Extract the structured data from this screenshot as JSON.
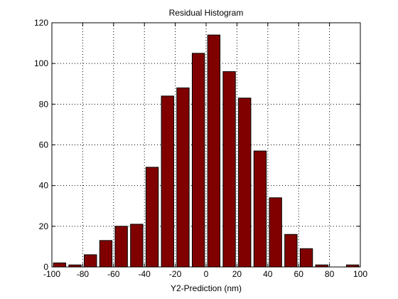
{
  "chart_data": {
    "type": "bar",
    "title": "Residual Histogram",
    "xlabel": "Y2-Prediction (nm)",
    "ylabel": "",
    "xlim": [
      -100,
      100
    ],
    "ylim": [
      0,
      120
    ],
    "xticks": [
      -100,
      -80,
      -60,
      -40,
      -20,
      0,
      20,
      40,
      60,
      80,
      100
    ],
    "yticks": [
      0,
      20,
      40,
      60,
      80,
      100,
      120
    ],
    "xtick_labels": [
      "-100",
      "-80",
      "-60",
      "-40",
      "-20",
      "0",
      "20",
      "40",
      "60",
      "80",
      "100"
    ],
    "ytick_labels": [
      "0",
      "20",
      "40",
      "60",
      "80",
      "100",
      "120"
    ],
    "grid": true,
    "bar_color": "#800000",
    "bin_centers": [
      -95,
      -85,
      -75,
      -65,
      -55,
      -45,
      -35,
      -25,
      -15,
      -5,
      5,
      15,
      25,
      35,
      45,
      55,
      65,
      75,
      85,
      95
    ],
    "values": [
      2,
      1,
      6,
      13,
      20,
      21,
      49,
      84,
      88,
      105,
      114,
      96,
      83,
      57,
      34,
      16,
      9,
      1,
      0,
      1
    ],
    "bar_width": 8
  }
}
